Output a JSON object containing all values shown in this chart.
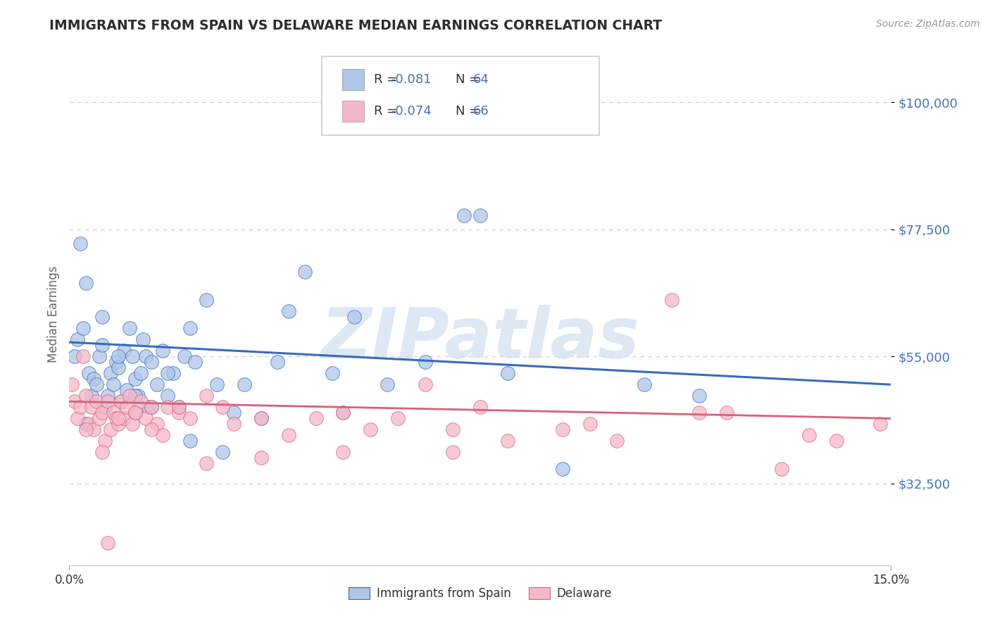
{
  "title": "IMMIGRANTS FROM SPAIN VS DELAWARE MEDIAN EARNINGS CORRELATION CHART",
  "source": "Source: ZipAtlas.com",
  "ylabel": "Median Earnings",
  "xmin": 0.0,
  "xmax": 15.0,
  "ymin": 18000,
  "ymax": 107000,
  "blue_color": "#aec6e8",
  "pink_color": "#f5b8c8",
  "blue_line_color": "#3a6abf",
  "pink_line_color": "#d9607a",
  "title_color": "#2d2d2d",
  "axis_label_color": "#4472c4",
  "watermark_color": "#d0dff0",
  "watermark": "ZIPatlas",
  "ytick_positions": [
    32500,
    55000,
    77500,
    100000
  ],
  "ytick_labels": [
    "$32,500",
    "$55,000",
    "$77,500",
    "$100,000"
  ],
  "blue_scatter_x": [
    0.1,
    0.15,
    0.2,
    0.25,
    0.3,
    0.35,
    0.4,
    0.45,
    0.5,
    0.55,
    0.6,
    0.65,
    0.7,
    0.75,
    0.8,
    0.85,
    0.9,
    0.95,
    1.0,
    1.05,
    1.1,
    1.15,
    1.2,
    1.25,
    1.3,
    1.35,
    1.4,
    1.45,
    1.5,
    1.6,
    1.7,
    1.8,
    1.9,
    2.0,
    2.1,
    2.2,
    2.3,
    2.5,
    2.7,
    3.0,
    3.2,
    3.5,
    4.0,
    4.3,
    4.8,
    5.2,
    5.8,
    6.5,
    7.2,
    8.0,
    9.0,
    10.5,
    0.3,
    0.6,
    0.9,
    1.2,
    1.5,
    1.8,
    2.2,
    2.8,
    3.8,
    5.0,
    7.5,
    11.5
  ],
  "blue_scatter_y": [
    55000,
    58000,
    75000,
    60000,
    68000,
    52000,
    48000,
    51000,
    50000,
    55000,
    57000,
    46000,
    48000,
    52000,
    50000,
    54000,
    53000,
    47000,
    56000,
    49000,
    60000,
    55000,
    51000,
    48000,
    52000,
    58000,
    55000,
    46000,
    54000,
    50000,
    56000,
    48000,
    52000,
    46000,
    55000,
    60000,
    54000,
    65000,
    50000,
    45000,
    50000,
    44000,
    63000,
    70000,
    52000,
    62000,
    50000,
    54000,
    80000,
    52000,
    35000,
    50000,
    43000,
    62000,
    55000,
    48000,
    46000,
    52000,
    40000,
    38000,
    54000,
    45000,
    80000,
    48000
  ],
  "pink_scatter_x": [
    0.05,
    0.1,
    0.15,
    0.2,
    0.25,
    0.3,
    0.35,
    0.4,
    0.45,
    0.5,
    0.55,
    0.6,
    0.65,
    0.7,
    0.75,
    0.8,
    0.85,
    0.9,
    0.95,
    1.0,
    1.05,
    1.1,
    1.15,
    1.2,
    1.3,
    1.4,
    1.5,
    1.6,
    1.7,
    1.8,
    2.0,
    2.2,
    2.5,
    2.8,
    3.0,
    3.5,
    4.0,
    4.5,
    5.0,
    5.5,
    6.0,
    6.5,
    7.0,
    7.5,
    8.0,
    9.0,
    10.0,
    11.0,
    12.0,
    13.0,
    14.0,
    0.3,
    0.6,
    0.9,
    1.2,
    1.5,
    2.0,
    2.5,
    3.5,
    5.0,
    7.0,
    9.5,
    11.5,
    13.5,
    14.8,
    0.7
  ],
  "pink_scatter_y": [
    50000,
    47000,
    44000,
    46000,
    55000,
    48000,
    43000,
    46000,
    42000,
    47000,
    44000,
    45000,
    40000,
    47000,
    42000,
    45000,
    44000,
    43000,
    47000,
    44000,
    46000,
    48000,
    43000,
    45000,
    47000,
    44000,
    46000,
    43000,
    41000,
    46000,
    45000,
    44000,
    48000,
    46000,
    43000,
    44000,
    41000,
    44000,
    45000,
    42000,
    44000,
    50000,
    42000,
    46000,
    40000,
    42000,
    40000,
    65000,
    45000,
    35000,
    40000,
    42000,
    38000,
    44000,
    45000,
    42000,
    46000,
    36000,
    37000,
    38000,
    38000,
    43000,
    45000,
    41000,
    43000,
    22000
  ]
}
